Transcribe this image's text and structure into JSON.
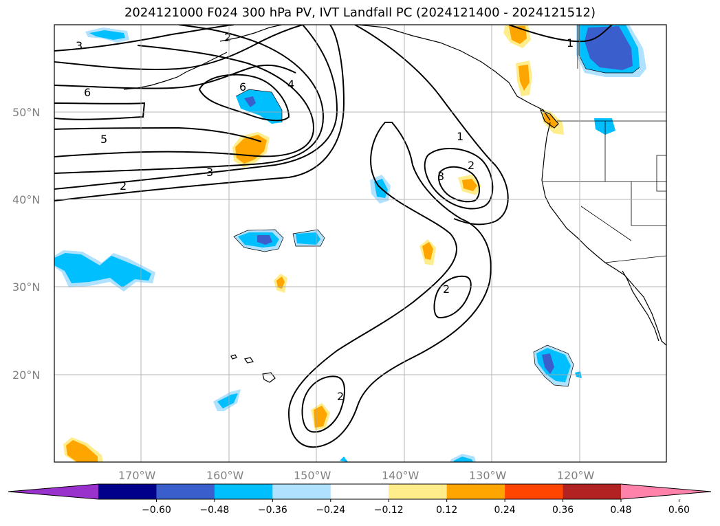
{
  "title": "2024121000 F024 300 hPa PV, IVT Landfall PC (2024121400 - 2024121512)",
  "lat_labels": [
    "50°N",
    "40°N",
    "30°N",
    "20°N"
  ],
  "lon_labels": [
    "170°W",
    "160°W",
    "150°W",
    "140°W",
    "130°W",
    "120°W"
  ],
  "colorbar": {
    "ticks": [
      "−0.60",
      "−0.48",
      "−0.36",
      "−0.24",
      "−0.12",
      "0.12",
      "0.24",
      "0.36",
      "0.48",
      "0.60"
    ],
    "colors": [
      "#9932cc",
      "#00008b",
      "#3a5fcd",
      "#00bfff",
      "#b0e2ff",
      "#ffffff",
      "#ffec8b",
      "#ffa500",
      "#ff4500",
      "#b22222",
      "#ff82ab"
    ]
  },
  "contour_labels": [
    "3",
    "2",
    "1",
    "6",
    "4",
    "6",
    "5",
    "3",
    "2",
    "1",
    "2",
    "3",
    "2",
    "2"
  ]
}
